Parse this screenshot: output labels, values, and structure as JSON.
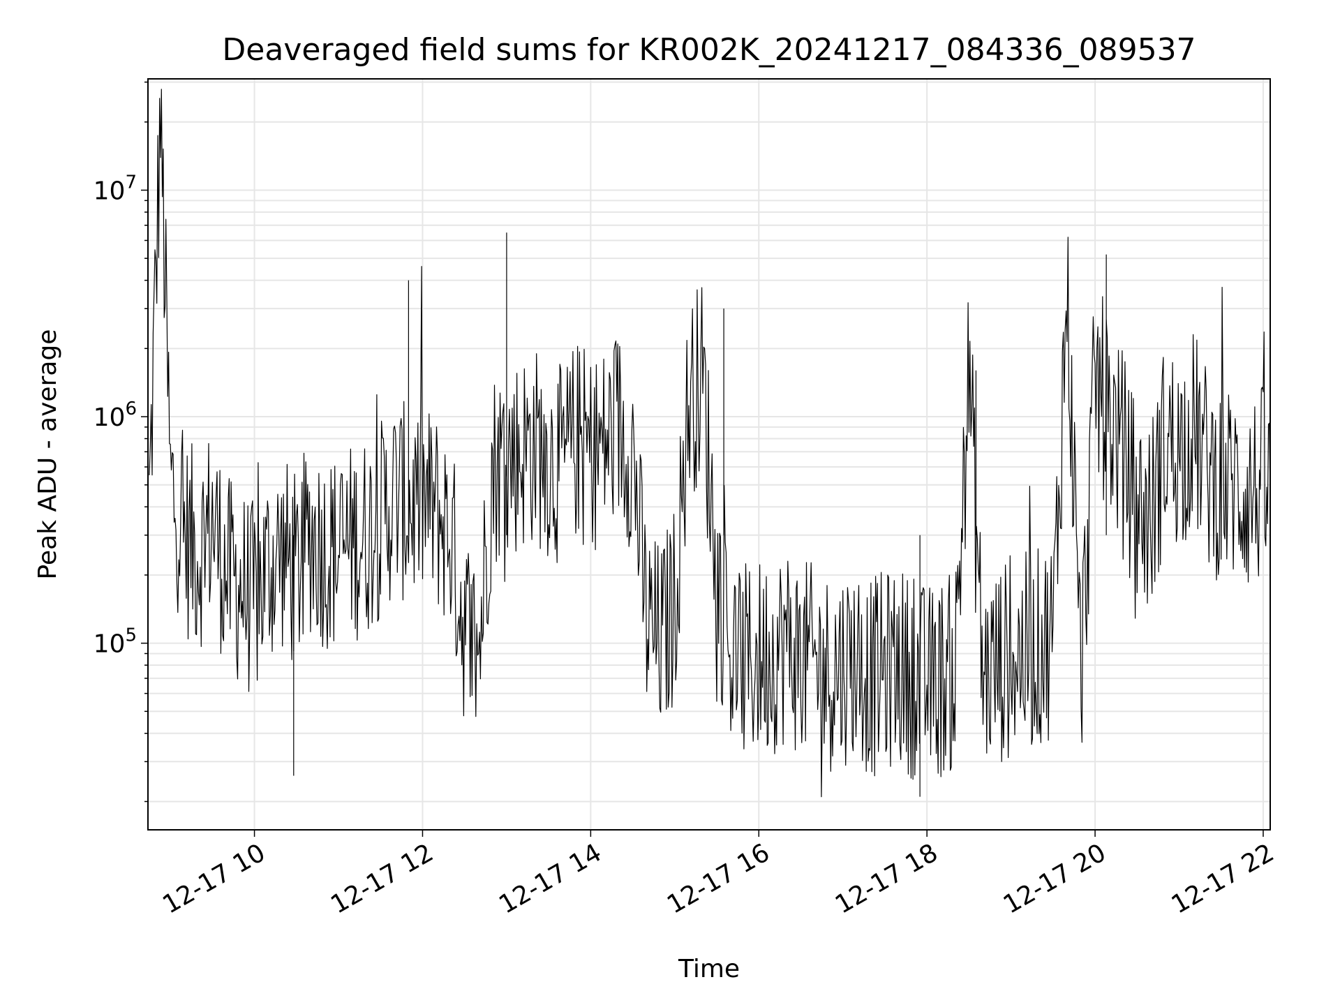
{
  "chart_data": {
    "type": "line",
    "title": "Deaveraged field sums for KR002K_20241217_084336_089537",
    "xlabel": "Time",
    "ylabel": "Peak ADU - average",
    "x_scale": "time",
    "y_scale": "log",
    "xlim": [
      "2024-12-17 08:44",
      "2024-12-17 22:05"
    ],
    "ylim": [
      15000,
      31000000
    ],
    "x_ticks": [
      {
        "t": "2024-12-17 10:00",
        "label": "12-17 10"
      },
      {
        "t": "2024-12-17 12:00",
        "label": "12-17 12"
      },
      {
        "t": "2024-12-17 14:00",
        "label": "12-17 14"
      },
      {
        "t": "2024-12-17 16:00",
        "label": "12-17 16"
      },
      {
        "t": "2024-12-17 18:00",
        "label": "12-17 18"
      },
      {
        "t": "2024-12-17 20:00",
        "label": "12-17 20"
      },
      {
        "t": "2024-12-17 22:00",
        "label": "12-17 22"
      }
    ],
    "y_ticks": [
      {
        "value": 100000,
        "base": "10",
        "exp": "5"
      },
      {
        "value": 1000000,
        "base": "10",
        "exp": "6"
      },
      {
        "value": 10000000,
        "base": "10",
        "exp": "7"
      }
    ],
    "grid": true,
    "minor_grid": true,
    "legend": false,
    "line_color": "#000000",
    "series": [
      {
        "x": [
          "2024-12-17 08:45",
          "2024-12-17 08:53",
          "2024-12-17 09:00",
          "2024-12-17 09:10",
          "2024-12-17 09:20",
          "2024-12-17 09:30",
          "2024-12-17 09:40",
          "2024-12-17 09:50",
          "2024-12-17 10:00",
          "2024-12-17 10:10",
          "2024-12-17 10:20",
          "2024-12-17 10:30",
          "2024-12-17 10:40",
          "2024-12-17 10:50",
          "2024-12-17 11:00",
          "2024-12-17 11:10",
          "2024-12-17 11:20",
          "2024-12-17 11:30",
          "2024-12-17 11:40",
          "2024-12-17 11:50",
          "2024-12-17 12:00",
          "2024-12-17 12:10",
          "2024-12-17 12:20",
          "2024-12-17 12:30",
          "2024-12-17 12:40",
          "2024-12-17 12:50",
          "2024-12-17 13:00",
          "2024-12-17 13:10",
          "2024-12-17 13:20",
          "2024-12-17 13:30",
          "2024-12-17 13:40",
          "2024-12-17 13:50",
          "2024-12-17 14:00",
          "2024-12-17 14:10",
          "2024-12-17 14:20",
          "2024-12-17 14:30",
          "2024-12-17 14:40",
          "2024-12-17 14:50",
          "2024-12-17 15:00",
          "2024-12-17 15:10",
          "2024-12-17 15:20",
          "2024-12-17 15:30",
          "2024-12-17 15:40",
          "2024-12-17 15:50",
          "2024-12-17 16:00",
          "2024-12-17 16:10",
          "2024-12-17 16:20",
          "2024-12-17 16:30",
          "2024-12-17 16:40",
          "2024-12-17 16:50",
          "2024-12-17 17:00",
          "2024-12-17 17:10",
          "2024-12-17 17:20",
          "2024-12-17 17:30",
          "2024-12-17 17:40",
          "2024-12-17 17:50",
          "2024-12-17 18:00",
          "2024-12-17 18:10",
          "2024-12-17 18:20",
          "2024-12-17 18:30",
          "2024-12-17 18:40",
          "2024-12-17 18:50",
          "2024-12-17 19:00",
          "2024-12-17 19:10",
          "2024-12-17 19:20",
          "2024-12-17 19:30",
          "2024-12-17 19:40",
          "2024-12-17 19:50",
          "2024-12-17 20:00",
          "2024-12-17 20:10",
          "2024-12-17 20:20",
          "2024-12-17 20:30",
          "2024-12-17 20:40",
          "2024-12-17 20:50",
          "2024-12-17 21:00",
          "2024-12-17 21:10",
          "2024-12-17 21:20",
          "2024-12-17 21:30",
          "2024-12-17 21:40",
          "2024-12-17 21:50",
          "2024-12-17 22:00",
          "2024-12-17 22:05"
        ],
        "y": [
          400000,
          22000000,
          500000,
          300000,
          250000,
          350000,
          200000,
          180000,
          150000,
          220000,
          250000,
          200000,
          300000,
          260000,
          250000,
          280000,
          300000,
          350000,
          450000,
          400000,
          420000,
          380000,
          300000,
          120000,
          90000,
          600000,
          650000,
          700000,
          750000,
          650000,
          600000,
          800000,
          700000,
          750000,
          900000,
          700000,
          120000,
          100000,
          150000,
          1200000,
          1500000,
          200000,
          90000,
          80000,
          85000,
          90000,
          100000,
          85000,
          80000,
          75000,
          80000,
          85000,
          70000,
          75000,
          80000,
          70000,
          65000,
          70000,
          75000,
          1600000,
          70000,
          80000,
          85000,
          90000,
          95000,
          110000,
          3500000,
          70000,
          1500000,
          1000000,
          700000,
          400000,
          350000,
          800000,
          700000,
          900000,
          600000,
          500000,
          500000,
          450000,
          500000,
          450000
        ]
      }
    ],
    "annotation_spikes": [
      {
        "t": "2024-12-17 13:00",
        "value": 6500000
      },
      {
        "t": "2024-12-17 15:35",
        "value": 3000000
      },
      {
        "t": "2024-12-17 11:50",
        "value": 4000000
      },
      {
        "t": "2024-12-17 20:08",
        "value": 5200000
      },
      {
        "t": "2024-12-17 18:35",
        "value": 1600000
      },
      {
        "t": "2024-12-17 17:55",
        "value": 21000
      },
      {
        "t": "2024-12-17 10:28",
        "value": 26000
      }
    ]
  }
}
